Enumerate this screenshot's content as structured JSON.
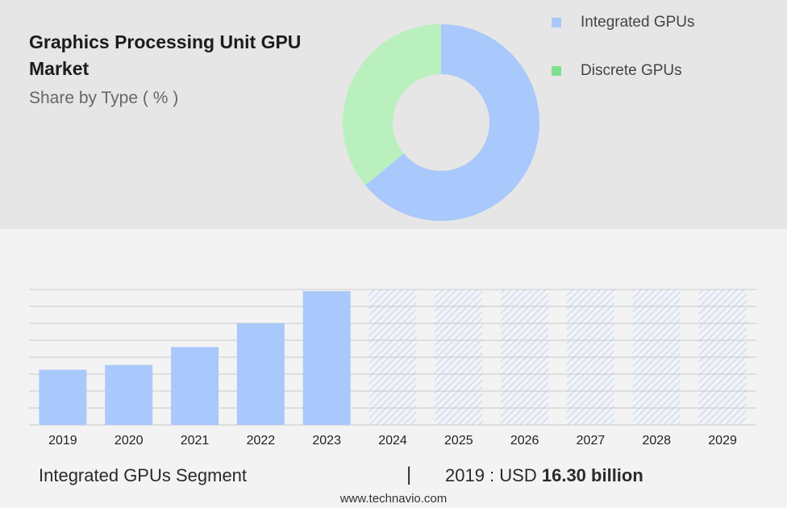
{
  "header": {
    "title": "Graphics Processing Unit GPU Market",
    "subtitle": "Share by Type ( % )"
  },
  "legend": [
    {
      "label": "Integrated GPUs",
      "color": "#a9c8fb"
    },
    {
      "label": "Discrete GPUs",
      "color": "#7ee08e"
    }
  ],
  "chart_data": [
    {
      "type": "pie",
      "donut": true,
      "slices": [
        {
          "label": "Integrated GPUs",
          "value": 64,
          "color": "#a9c8fb"
        },
        {
          "label": "Discrete GPUs",
          "value": 36,
          "color": "#b9f0bd"
        }
      ]
    },
    {
      "type": "bar",
      "categories": [
        "2019",
        "2020",
        "2021",
        "2022",
        "2023",
        "2024",
        "2025",
        "2026",
        "2027",
        "2028",
        "2029"
      ],
      "values": [
        16.3,
        17.7,
        23.0,
        30.0,
        39.5,
        null,
        null,
        null,
        null,
        null,
        null
      ],
      "forecast_categories": [
        "2024",
        "2025",
        "2026",
        "2027",
        "2028",
        "2029"
      ],
      "ylim": [
        0,
        40
      ],
      "grid": true,
      "bar_color": "#a9c8fb",
      "forecast_pattern_color": "#a9c8fb"
    }
  ],
  "bottom": {
    "segment_label": "Integrated GPUs Segment",
    "separator": "|",
    "year_text": "2019 : USD",
    "value_text": "16.30 billion"
  },
  "footer": {
    "site": "www.technavio.com"
  }
}
